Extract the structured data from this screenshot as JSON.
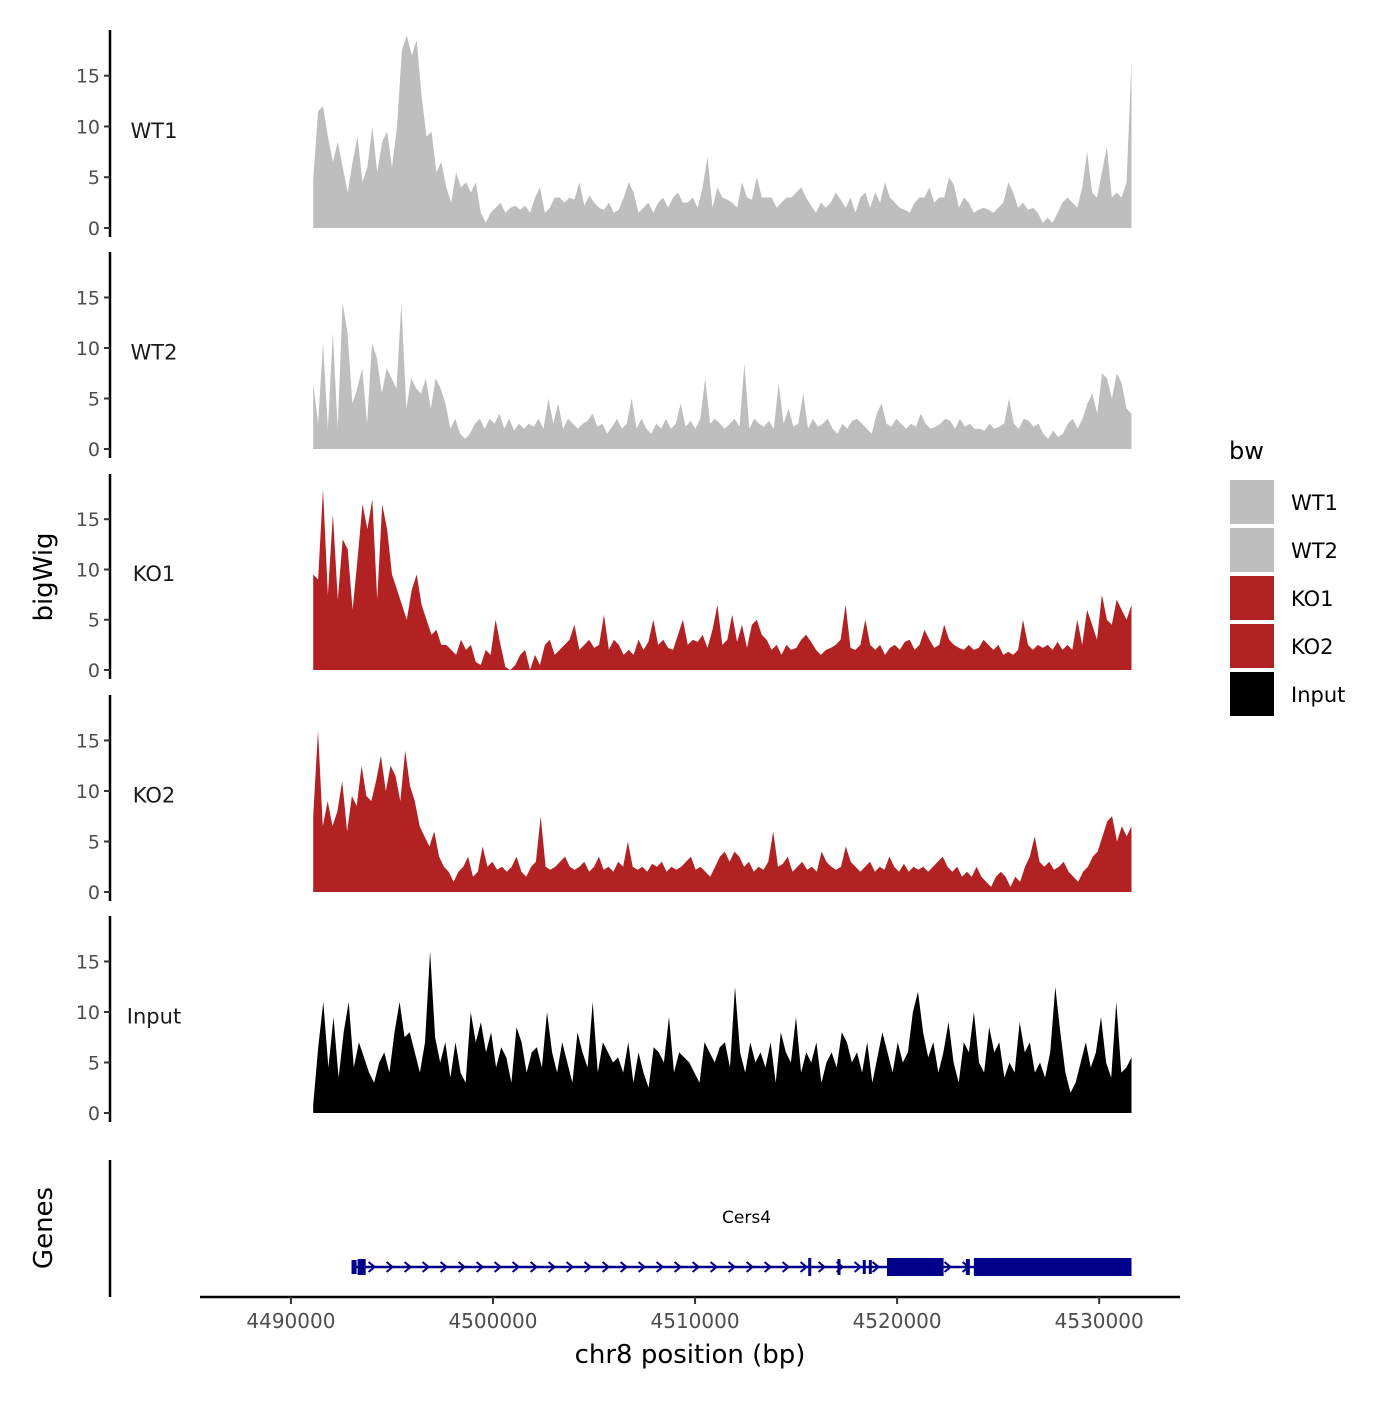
{
  "chart_data": {
    "type": "area",
    "y_axis_label": "bigWig",
    "genes_axis_label": "Genes",
    "x_axis_label": "chr8 position (bp)",
    "x_range": [
      4485500,
      4534000
    ],
    "x_ticks": [
      4490000,
      4500000,
      4510000,
      4520000,
      4530000
    ],
    "x_tick_labels": [
      "4490000",
      "4500000",
      "4510000",
      "4520000",
      "4530000"
    ],
    "y_range": [
      0,
      19.5
    ],
    "y_ticks": [
      0,
      5,
      10,
      15
    ],
    "y_tick_labels": [
      "0",
      "5",
      "10",
      "15"
    ],
    "track_start": 4491100,
    "track_end": 4531600,
    "legend": {
      "title": "bw",
      "entries": [
        {
          "label": "WT1",
          "color": "#bebebe"
        },
        {
          "label": "WT2",
          "color": "#bebebe"
        },
        {
          "label": "KO1",
          "color": "#b22222"
        },
        {
          "label": "KO2",
          "color": "#b22222"
        },
        {
          "label": "Input",
          "color": "#000000"
        }
      ]
    },
    "series": [
      {
        "name": "WT1",
        "color": "#bebebe",
        "values": [
          4.8,
          11.5,
          12,
          9,
          6.5,
          8.5,
          6,
          3.5,
          6.5,
          9,
          4.5,
          6,
          10,
          5.5,
          8.5,
          9.5,
          6,
          10,
          17.5,
          19,
          17,
          18.5,
          13,
          9,
          9.5,
          5.5,
          6.5,
          4,
          2.5,
          5.5,
          4,
          4.5,
          3.5,
          4.5,
          1.5,
          0.5,
          1.5,
          2,
          2.5,
          1.5,
          2,
          2.2,
          1.8,
          2.2,
          1.5,
          3,
          4,
          1.5,
          2,
          3,
          3,
          2.5,
          3,
          2.8,
          4.5,
          2.2,
          3.2,
          2.5,
          2,
          1.8,
          2.5,
          1.5,
          1.8,
          3,
          4.5,
          3.5,
          1.5,
          2,
          2.5,
          1.5,
          2.5,
          3,
          2,
          3,
          3.5,
          2.5,
          2.5,
          3,
          2,
          4,
          7,
          2,
          4,
          3,
          2.8,
          2.5,
          2,
          4.5,
          3,
          2.8,
          5,
          3,
          3,
          3,
          2,
          2.5,
          3,
          3,
          3.5,
          4,
          3,
          2.2,
          1.5,
          2.5,
          2,
          2.5,
          3.5,
          2.8,
          2,
          3,
          1.5,
          3,
          3.5,
          2,
          3.5,
          2.5,
          4.5,
          3,
          2.5,
          2,
          1.8,
          1.5,
          2.5,
          3,
          3,
          4,
          2.5,
          3,
          3,
          5,
          4.2,
          2,
          3,
          2.5,
          1.5,
          1.8,
          2,
          1.8,
          1.5,
          2,
          2.5,
          4.5,
          3.5,
          2,
          2.5,
          1.8,
          2,
          1.5,
          0.5,
          1,
          0.5,
          1.5,
          2.5,
          3,
          2.5,
          2,
          4,
          7.5,
          3.5,
          3,
          5.5,
          8,
          3,
          3.5,
          3,
          4.5,
          16.5
        ]
      },
      {
        "name": "WT2",
        "color": "#bebebe",
        "values": [
          6.5,
          2.5,
          10.5,
          2,
          11.5,
          2,
          14.5,
          11.5,
          4.5,
          6,
          8,
          2.5,
          10.5,
          9,
          5.5,
          8,
          7,
          6,
          14.5,
          4,
          7,
          6,
          5.5,
          7,
          4,
          7,
          6,
          4.5,
          2,
          3,
          1.5,
          1,
          1.5,
          2.5,
          3,
          2,
          3,
          2.5,
          3.5,
          2,
          3,
          1.8,
          2.5,
          2,
          2.5,
          2.2,
          3,
          2,
          5,
          2.5,
          4.5,
          2,
          3,
          2.5,
          2,
          2.5,
          2.8,
          3.5,
          2.2,
          2.5,
          1.5,
          2.2,
          3,
          2,
          2.5,
          5,
          2,
          3,
          2,
          1.5,
          2.5,
          2,
          3,
          2,
          2.5,
          4.5,
          2.2,
          2.8,
          2,
          3,
          7,
          2.5,
          3,
          2.5,
          2,
          2.5,
          3,
          2.2,
          8.5,
          2,
          3,
          2.5,
          2.2,
          2.8,
          2,
          6.5,
          2.5,
          4,
          2.2,
          2.5,
          5.5,
          2,
          3,
          2.2,
          2.5,
          3,
          2,
          1.5,
          2.5,
          2,
          2.8,
          3,
          2.5,
          2,
          1.5,
          3.5,
          4.5,
          2.5,
          2.2,
          3,
          2.5,
          2,
          2.5,
          2.2,
          3.5,
          2.5,
          2,
          2.2,
          2.5,
          3,
          2.8,
          2,
          3,
          2.2,
          2.5,
          2,
          2,
          1.8,
          2.5,
          2,
          2.2,
          2.5,
          5,
          2.5,
          2,
          3,
          2.8,
          2.2,
          2.5,
          1.5,
          1,
          1.8,
          1.2,
          1.5,
          2.5,
          3,
          2,
          3,
          4.5,
          5.5,
          3.5,
          7.5,
          7,
          5,
          7.5,
          6.5,
          4,
          3.5
        ]
      },
      {
        "name": "KO1",
        "color": "#b22222",
        "values": [
          9.5,
          9,
          18,
          7.5,
          15.5,
          7,
          13,
          12,
          6,
          11,
          16.5,
          14,
          17,
          7,
          16.5,
          14,
          9.5,
          8,
          6.5,
          5,
          8,
          9.5,
          6.5,
          5,
          3.5,
          4,
          2.5,
          2.5,
          2,
          1.5,
          3,
          2,
          2.5,
          0.8,
          0.5,
          2,
          1.5,
          5,
          2.5,
          0.3,
          0,
          0.5,
          1.5,
          2,
          0,
          1.5,
          0.5,
          2.5,
          3,
          1.5,
          2,
          2.5,
          3,
          4.5,
          2,
          2.5,
          3,
          2.2,
          2.5,
          5.5,
          2,
          3,
          2.5,
          1.5,
          2,
          1.5,
          3,
          2,
          2.8,
          5,
          2.5,
          3,
          2.2,
          2,
          3.5,
          5,
          2.5,
          3,
          2.8,
          3.5,
          2.2,
          4,
          6.5,
          2.5,
          3,
          5.5,
          2.8,
          4.5,
          2.2,
          4.5,
          5,
          3.5,
          3,
          2,
          2.5,
          1.5,
          2.5,
          2,
          2.2,
          3,
          3.5,
          2.8,
          2,
          1.5,
          2,
          2.2,
          2.5,
          3,
          6.5,
          2.2,
          2,
          2.5,
          5,
          2.5,
          2,
          2.5,
          1.5,
          2.2,
          2.5,
          2,
          2.8,
          3,
          2,
          2.5,
          4,
          3,
          2.2,
          2.5,
          4.5,
          3,
          2.5,
          2.2,
          2,
          2.5,
          2,
          2.2,
          3,
          2.5,
          2,
          2.5,
          1.5,
          1.8,
          1.5,
          2,
          5,
          2.5,
          2,
          2.5,
          2.2,
          2.5,
          2,
          2.8,
          2,
          2.5,
          2,
          5,
          2.5,
          6,
          4.5,
          3,
          7.5,
          5,
          4.5,
          7,
          6,
          5,
          6.5
        ]
      },
      {
        "name": "KO2",
        "color": "#b22222",
        "values": [
          7.5,
          16,
          6.5,
          9,
          6.5,
          8,
          11,
          6,
          9.5,
          8.5,
          12.5,
          9.5,
          9,
          11,
          13.5,
          10,
          12.5,
          11.5,
          9,
          14,
          10.5,
          9,
          6.5,
          5.5,
          4.5,
          6,
          3.5,
          2.5,
          2,
          1,
          2,
          2.5,
          3.5,
          1.5,
          2,
          4.5,
          2.5,
          3,
          2.2,
          2.5,
          2,
          2.5,
          3.5,
          2,
          1.5,
          2.5,
          3,
          7.5,
          2.5,
          2.2,
          2.5,
          3,
          3.5,
          2.5,
          2.2,
          2.5,
          3,
          2,
          2.5,
          3.5,
          2.2,
          2.5,
          2,
          3,
          2.5,
          5,
          2.5,
          2.2,
          2.5,
          2,
          2.8,
          2.5,
          3,
          2,
          2.5,
          2.2,
          2.5,
          3,
          3.5,
          2.2,
          2.5,
          2,
          1.5,
          2.5,
          3.5,
          4,
          3,
          4,
          3.5,
          2.5,
          3,
          2,
          2.5,
          2.2,
          3,
          6,
          2.5,
          2.8,
          3.5,
          2,
          2.5,
          3,
          2.2,
          2.5,
          2,
          4,
          3,
          2.5,
          2.2,
          2.5,
          4.5,
          3,
          2.5,
          2,
          2.5,
          3,
          2,
          2.5,
          2.2,
          3.5,
          2.5,
          2,
          2.8,
          2,
          2.5,
          2.2,
          2.5,
          2,
          2.5,
          3,
          3.5,
          2.5,
          2,
          2.5,
          1.5,
          2,
          1.5,
          2.5,
          1.5,
          1,
          0.5,
          1.5,
          2,
          1.5,
          0.5,
          1.5,
          1,
          2.5,
          3.5,
          5.5,
          3,
          2.5,
          3,
          2.2,
          2.5,
          3,
          2,
          1.5,
          1,
          2,
          2.5,
          3.5,
          4,
          5.5,
          7,
          7.5,
          5,
          6.5,
          5.5,
          6.5
        ]
      },
      {
        "name": "Input",
        "color": "#000000",
        "values": [
          0.8,
          6.5,
          11,
          4.5,
          9.5,
          3.5,
          8,
          11,
          4.5,
          7,
          5.5,
          4,
          3,
          5,
          6,
          4,
          8,
          11,
          7.5,
          8,
          6,
          4,
          7,
          16,
          7.5,
          5,
          7,
          3.5,
          7,
          4,
          3,
          10,
          7,
          9,
          6,
          8,
          4.5,
          6.5,
          5.5,
          3,
          8.5,
          7,
          4,
          6,
          6.5,
          4.5,
          10,
          6,
          4,
          7,
          5,
          3,
          8,
          6,
          4.5,
          11,
          4,
          7,
          6,
          5,
          5.5,
          4,
          7,
          3,
          6,
          4,
          2.5,
          6.5,
          6,
          5,
          9.5,
          4,
          6,
          5.5,
          5,
          4,
          3,
          7,
          6,
          5,
          6.5,
          7,
          4.5,
          12.5,
          6,
          4,
          7,
          5,
          6,
          4.5,
          7,
          3,
          8,
          6,
          5,
          9.5,
          4,
          6,
          5,
          7,
          3,
          5,
          6,
          4.5,
          8,
          7,
          5,
          6,
          4,
          7,
          3,
          5.5,
          8,
          6,
          4,
          7,
          5,
          6,
          10,
          12,
          8,
          5.5,
          7,
          4,
          6,
          9,
          5,
          3,
          7,
          6,
          10,
          5,
          4,
          8.5,
          6,
          7,
          3.5,
          5,
          4,
          9,
          6,
          7,
          4,
          5,
          3.5,
          6,
          12.5,
          8,
          4,
          2,
          3,
          5,
          7,
          4.5,
          6,
          9.5,
          5,
          3.5,
          11,
          4,
          4.5,
          5.5
        ]
      }
    ],
    "gene": {
      "name": "Cers4",
      "strand": "+",
      "start": 4493000,
      "end": 4531600
    }
  }
}
